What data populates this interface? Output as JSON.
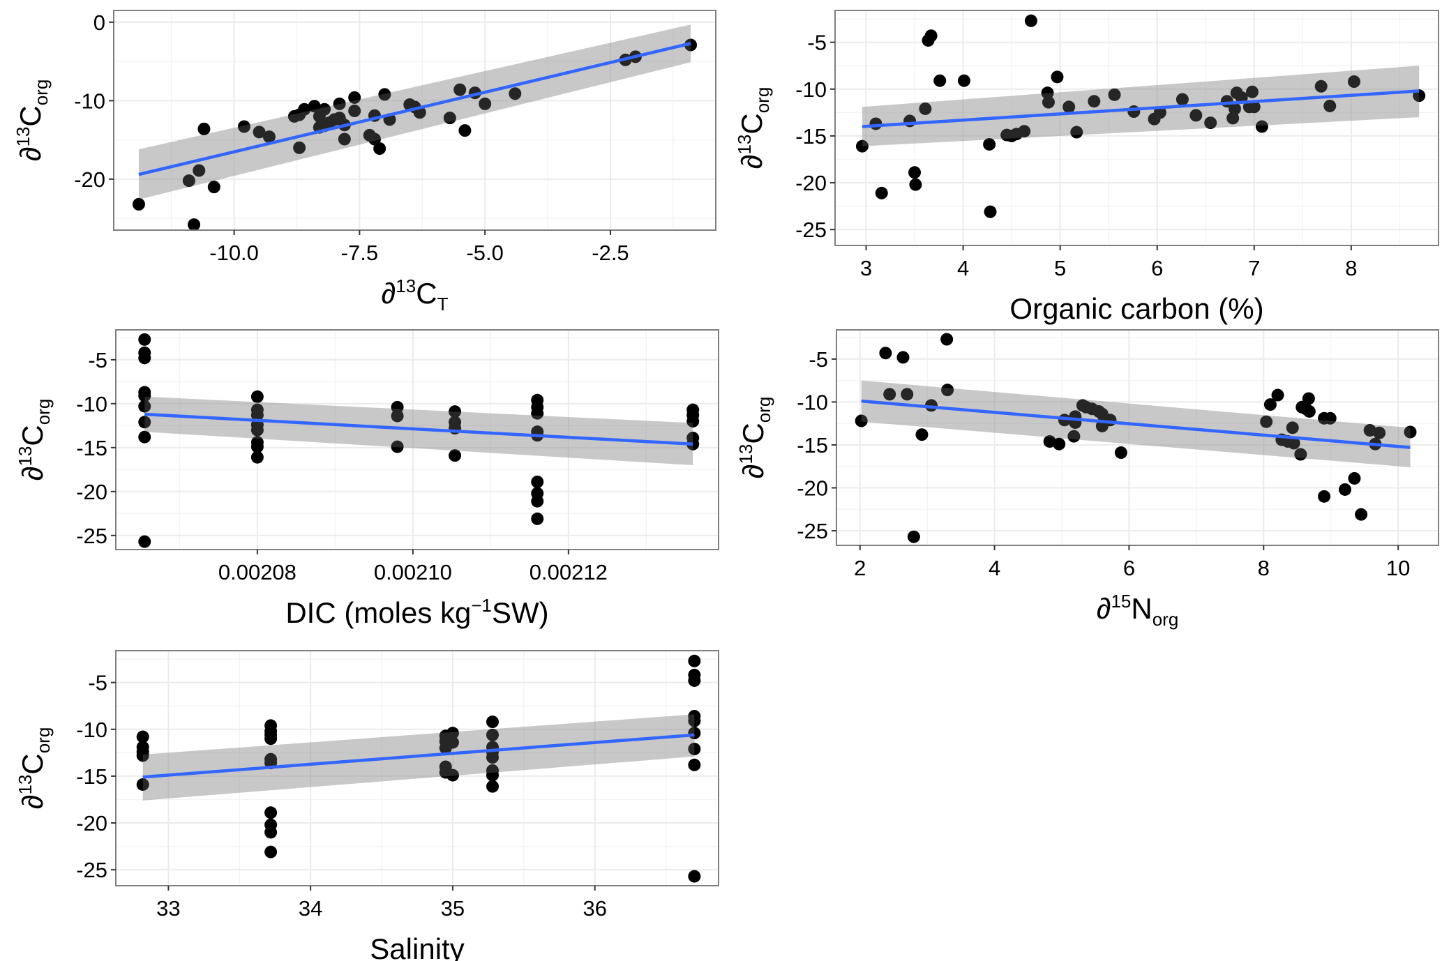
{
  "figure": {
    "point_color": "#000000",
    "fit_color": "#3366FF",
    "band_color": "#999999",
    "panel_border": "#7f7f7f",
    "grid_color": "#ebebeb"
  },
  "chart_data": [
    {
      "id": "p1",
      "type": "scatter",
      "title": "",
      "xlabel": {
        "prefix": "∂",
        "sup": "13",
        "main": "C",
        "sub": "T"
      },
      "ylabel": {
        "prefix": "∂",
        "sup": "13",
        "main": "C",
        "sub": "org"
      },
      "xlim": [
        -12.4,
        -0.4
      ],
      "ylim": [
        -26.5,
        1.5
      ],
      "xticks": [
        -10.0,
        -7.5,
        -5.0,
        -2.5
      ],
      "xtick_labels": [
        "-10.0",
        "-7.5",
        "-5.0",
        "-2.5"
      ],
      "yticks": [
        0,
        -10,
        -20
      ],
      "ytick_labels": [
        "0",
        "-10",
        "-20"
      ],
      "grid": true,
      "points": [
        [
          -11.9,
          -23.2
        ],
        [
          -10.9,
          -20.2
        ],
        [
          -10.8,
          -25.8
        ],
        [
          -10.7,
          -18.9
        ],
        [
          -10.6,
          -13.6
        ],
        [
          -10.4,
          -21.0
        ],
        [
          -9.8,
          -13.3
        ],
        [
          -9.5,
          -14.0
        ],
        [
          -9.3,
          -14.6
        ],
        [
          -8.8,
          -12.0
        ],
        [
          -8.7,
          -11.8
        ],
        [
          -8.7,
          -16.0
        ],
        [
          -8.6,
          -11.1
        ],
        [
          -8.4,
          -10.7
        ],
        [
          -8.3,
          -12.0
        ],
        [
          -8.2,
          -11.1
        ],
        [
          -8.3,
          -13.4
        ],
        [
          -8.2,
          -13.2
        ],
        [
          -8.1,
          -12.8
        ],
        [
          -8.0,
          -12.4
        ],
        [
          -7.9,
          -10.4
        ],
        [
          -7.9,
          -12.2
        ],
        [
          -7.8,
          -13.1
        ],
        [
          -7.8,
          -14.9
        ],
        [
          -7.6,
          -9.6
        ],
        [
          -7.6,
          -11.3
        ],
        [
          -7.3,
          -14.4
        ],
        [
          -7.2,
          -11.9
        ],
        [
          -7.2,
          -14.9
        ],
        [
          -7.1,
          -16.1
        ],
        [
          -7.0,
          -9.2
        ],
        [
          -6.9,
          -12.4
        ],
        [
          -6.5,
          -10.5
        ],
        [
          -6.4,
          -10.8
        ],
        [
          -6.3,
          -11.5
        ],
        [
          -5.7,
          -12.2
        ],
        [
          -5.5,
          -8.6
        ],
        [
          -5.4,
          -13.8
        ],
        [
          -5.2,
          -9.0
        ],
        [
          -5.0,
          -10.4
        ],
        [
          -4.4,
          -9.1
        ],
        [
          -2.2,
          -4.8
        ],
        [
          -2.0,
          -4.4
        ],
        [
          -0.9,
          -2.9
        ]
      ],
      "fit": {
        "x": [
          -11.9,
          -0.9
        ],
        "y": [
          -19.4,
          -2.7
        ],
        "lower": [
          -22.6,
          -5.1
        ],
        "upper": [
          -16.2,
          -0.3
        ]
      }
    },
    {
      "id": "p2",
      "type": "scatter",
      "title": "",
      "xlabel": {
        "text": "Organic  carbon (%)"
      },
      "ylabel": {
        "prefix": "∂",
        "sup": "13",
        "main": "C",
        "sub": "org"
      },
      "xlim": [
        2.68,
        8.9
      ],
      "ylim": [
        -26.7,
        -1.6
      ],
      "xticks": [
        3,
        4,
        5,
        6,
        7,
        8
      ],
      "xtick_labels": [
        "3",
        "4",
        "5",
        "6",
        "7",
        "8"
      ],
      "yticks": [
        -5,
        -10,
        -15,
        -20,
        -25
      ],
      "ytick_labels": [
        "-5",
        "-10",
        "-15",
        "-20",
        "-25"
      ],
      "grid": true,
      "points": [
        [
          2.96,
          -16.1
        ],
        [
          3.1,
          -13.7
        ],
        [
          3.16,
          -21.1
        ],
        [
          3.45,
          -13.4
        ],
        [
          3.5,
          -18.9
        ],
        [
          3.51,
          -20.2
        ],
        [
          3.61,
          -12.1
        ],
        [
          3.64,
          -4.8
        ],
        [
          3.67,
          -4.3
        ],
        [
          3.76,
          -9.1
        ],
        [
          4.01,
          -9.1
        ],
        [
          4.27,
          -15.9
        ],
        [
          4.28,
          -23.1
        ],
        [
          4.45,
          -14.9
        ],
        [
          4.5,
          -15.0
        ],
        [
          4.55,
          -14.8
        ],
        [
          4.63,
          -14.5
        ],
        [
          4.7,
          -2.7
        ],
        [
          4.87,
          -10.4
        ],
        [
          4.88,
          -11.4
        ],
        [
          4.97,
          -8.7
        ],
        [
          5.09,
          -11.9
        ],
        [
          5.17,
          -14.6
        ],
        [
          5.35,
          -11.3
        ],
        [
          5.56,
          -10.6
        ],
        [
          5.76,
          -12.4
        ],
        [
          5.97,
          -13.2
        ],
        [
          6.03,
          -12.5
        ],
        [
          6.26,
          -11.1
        ],
        [
          6.4,
          -12.8
        ],
        [
          6.55,
          -13.6
        ],
        [
          6.72,
          -11.3
        ],
        [
          6.78,
          -13.1
        ],
        [
          6.8,
          -12.1
        ],
        [
          6.82,
          -10.4
        ],
        [
          6.87,
          -10.9
        ],
        [
          6.95,
          -11.9
        ],
        [
          6.98,
          -10.3
        ],
        [
          7.0,
          -11.9
        ],
        [
          7.08,
          -14.0
        ],
        [
          7.69,
          -9.7
        ],
        [
          7.78,
          -11.8
        ],
        [
          8.03,
          -9.2
        ],
        [
          8.7,
          -10.7
        ]
      ],
      "fit": {
        "x": [
          2.96,
          8.7
        ],
        "y": [
          -14.0,
          -10.2
        ],
        "lower": [
          -16.1,
          -13.0
        ],
        "upper": [
          -11.9,
          -7.5
        ]
      }
    },
    {
      "id": "p3",
      "type": "scatter",
      "title": "",
      "xlabel": {
        "prefix": "",
        "pre": "DIC (moles kg",
        "sup": "−1",
        "post": "SW)"
      },
      "ylabel": {
        "prefix": "∂",
        "sup": "13",
        "main": "C",
        "sub": "org"
      },
      "xlim": [
        0.0020618,
        0.0021393
      ],
      "ylim": [
        -26.6,
        -1.6
      ],
      "xticks": [
        0.00208,
        0.0021,
        0.00212
      ],
      "xtick_labels": [
        "0.00208",
        "0.00210",
        "0.00212"
      ],
      "yticks": [
        -5,
        -10,
        -15,
        -20,
        -25
      ],
      "ytick_labels": [
        "-5",
        "-10",
        "-15",
        "-20",
        "-25"
      ],
      "grid": true,
      "points": [
        [
          0.0020655,
          -2.7
        ],
        [
          0.0020655,
          -4.2
        ],
        [
          0.0020655,
          -4.8
        ],
        [
          0.0020655,
          -8.7
        ],
        [
          0.0020655,
          -9.1
        ],
        [
          0.0020655,
          -10.3
        ],
        [
          0.0020655,
          -12.1
        ],
        [
          0.0020655,
          -13.8
        ],
        [
          0.0020655,
          -25.7
        ],
        [
          0.00208,
          -9.2
        ],
        [
          0.00208,
          -10.7
        ],
        [
          0.00208,
          -11.3
        ],
        [
          0.00208,
          -12.4
        ],
        [
          0.00208,
          -13.0
        ],
        [
          0.00208,
          -14.4
        ],
        [
          0.00208,
          -14.9
        ],
        [
          0.00208,
          -16.1
        ],
        [
          0.002098,
          -10.4
        ],
        [
          0.002098,
          -11.4
        ],
        [
          0.002098,
          -14.9
        ],
        [
          0.0021054,
          -10.9
        ],
        [
          0.0021054,
          -12.1
        ],
        [
          0.0021054,
          -12.8
        ],
        [
          0.0021054,
          -15.9
        ],
        [
          0.002116,
          -9.6
        ],
        [
          0.002116,
          -10.4
        ],
        [
          0.002116,
          -11.1
        ],
        [
          0.002116,
          -13.2
        ],
        [
          0.002116,
          -13.6
        ],
        [
          0.002116,
          -18.9
        ],
        [
          0.002116,
          -20.2
        ],
        [
          0.002116,
          -21.1
        ],
        [
          0.002116,
          -23.1
        ],
        [
          0.002136,
          -10.7
        ],
        [
          0.002136,
          -11.3
        ],
        [
          0.002136,
          -12.0
        ],
        [
          0.002136,
          -13.9
        ],
        [
          0.002136,
          -14.6
        ]
      ],
      "fit": {
        "x": [
          0.0020655,
          0.002136
        ],
        "y": [
          -11.2,
          -14.6
        ],
        "lower": [
          -13.2,
          -17.0
        ],
        "upper": [
          -9.2,
          -12.2
        ]
      }
    },
    {
      "id": "p4",
      "type": "scatter",
      "title": "",
      "xlabel": {
        "prefix": "∂",
        "sup": "15",
        "main": "N",
        "sub": "org"
      },
      "ylabel": {
        "prefix": "∂",
        "sup": "13",
        "main": "C",
        "sub": "org"
      },
      "xlim": [
        1.65,
        10.6
      ],
      "ylim": [
        -26.7,
        -1.6
      ],
      "xticks": [
        2,
        4,
        6,
        8,
        10
      ],
      "xtick_labels": [
        "2",
        "4",
        "6",
        "8",
        "10"
      ],
      "yticks": [
        -5,
        -10,
        -15,
        -20,
        -25
      ],
      "ytick_labels": [
        "-5",
        "-10",
        "-15",
        "-20",
        "-25"
      ],
      "grid": true,
      "points": [
        [
          2.02,
          -12.2
        ],
        [
          2.38,
          -4.3
        ],
        [
          2.44,
          -9.1
        ],
        [
          2.64,
          -4.8
        ],
        [
          2.7,
          -9.1
        ],
        [
          2.8,
          -25.7
        ],
        [
          2.92,
          -13.8
        ],
        [
          3.06,
          -10.4
        ],
        [
          3.29,
          -2.7
        ],
        [
          3.3,
          -8.6
        ],
        [
          4.82,
          -14.6
        ],
        [
          4.96,
          -14.9
        ],
        [
          5.04,
          -12.1
        ],
        [
          5.18,
          -14.0
        ],
        [
          5.2,
          -12.4
        ],
        [
          5.2,
          -11.7
        ],
        [
          5.31,
          -10.4
        ],
        [
          5.36,
          -10.6
        ],
        [
          5.45,
          -10.8
        ],
        [
          5.55,
          -11.1
        ],
        [
          5.6,
          -11.4
        ],
        [
          5.62,
          -12.4
        ],
        [
          5.6,
          -12.8
        ],
        [
          5.72,
          -12.1
        ],
        [
          5.88,
          -15.9
        ],
        [
          8.04,
          -12.3
        ],
        [
          8.1,
          -10.3
        ],
        [
          8.21,
          -9.2
        ],
        [
          8.27,
          -14.4
        ],
        [
          8.36,
          -14.6
        ],
        [
          8.43,
          -13.0
        ],
        [
          8.45,
          -14.8
        ],
        [
          8.55,
          -16.1
        ],
        [
          8.57,
          -10.6
        ],
        [
          8.63,
          -10.8
        ],
        [
          8.67,
          -9.6
        ],
        [
          8.68,
          -11.1
        ],
        [
          8.9,
          -11.9
        ],
        [
          8.9,
          -21.0
        ],
        [
          8.99,
          -11.9
        ],
        [
          9.21,
          -20.2
        ],
        [
          9.35,
          -18.9
        ],
        [
          9.45,
          -23.1
        ],
        [
          9.58,
          -13.3
        ],
        [
          9.66,
          -14.9
        ],
        [
          9.72,
          -13.6
        ],
        [
          10.18,
          -13.5
        ]
      ],
      "fit": {
        "x": [
          2.02,
          10.18
        ],
        "y": [
          -9.9,
          -15.3
        ],
        "lower": [
          -12.3,
          -17.6
        ],
        "upper": [
          -7.5,
          -13.0
        ]
      }
    },
    {
      "id": "p5",
      "type": "scatter",
      "title": "",
      "xlabel": {
        "text": "Salinity"
      },
      "ylabel": {
        "prefix": "∂",
        "sup": "13",
        "main": "C",
        "sub": "org"
      },
      "xlim": [
        32.63,
        36.87
      ],
      "ylim": [
        -26.7,
        -1.6
      ],
      "xticks": [
        33,
        34,
        35,
        36
      ],
      "xtick_labels": [
        "33",
        "34",
        "35",
        "36"
      ],
      "yticks": [
        -5,
        -10,
        -15,
        -20,
        -25
      ],
      "ytick_labels": [
        "-5",
        "-10",
        "-15",
        "-20",
        "-25"
      ],
      "grid": true,
      "points": [
        [
          32.82,
          -10.8
        ],
        [
          32.82,
          -11.9
        ],
        [
          32.82,
          -12.4
        ],
        [
          32.82,
          -12.8
        ],
        [
          32.82,
          -15.9
        ],
        [
          33.72,
          -9.6
        ],
        [
          33.72,
          -10.2
        ],
        [
          33.72,
          -10.6
        ],
        [
          33.72,
          -11.0
        ],
        [
          33.72,
          -13.2
        ],
        [
          33.72,
          -13.6
        ],
        [
          33.72,
          -18.9
        ],
        [
          33.72,
          -20.2
        ],
        [
          33.72,
          -21.0
        ],
        [
          33.72,
          -23.1
        ],
        [
          34.95,
          -10.7
        ],
        [
          34.95,
          -11.3
        ],
        [
          34.95,
          -12.0
        ],
        [
          34.95,
          -14.0
        ],
        [
          34.95,
          -14.6
        ],
        [
          35.0,
          -10.4
        ],
        [
          35.0,
          -11.4
        ],
        [
          35.0,
          -14.9
        ],
        [
          35.28,
          -9.2
        ],
        [
          35.28,
          -10.6
        ],
        [
          35.28,
          -11.9
        ],
        [
          35.28,
          -12.4
        ],
        [
          35.28,
          -13.0
        ],
        [
          35.28,
          -14.4
        ],
        [
          35.28,
          -14.9
        ],
        [
          35.28,
          -16.1
        ],
        [
          36.7,
          -2.7
        ],
        [
          36.7,
          -4.2
        ],
        [
          36.7,
          -4.8
        ],
        [
          36.7,
          -8.6
        ],
        [
          36.7,
          -9.1
        ],
        [
          36.7,
          -10.4
        ],
        [
          36.7,
          -12.1
        ],
        [
          36.7,
          -13.8
        ],
        [
          36.7,
          -25.7
        ]
      ],
      "fit": {
        "x": [
          32.82,
          36.7
        ],
        "y": [
          -15.1,
          -10.6
        ],
        "lower": [
          -17.6,
          -12.9
        ],
        "upper": [
          -12.7,
          -8.4
        ]
      }
    }
  ]
}
